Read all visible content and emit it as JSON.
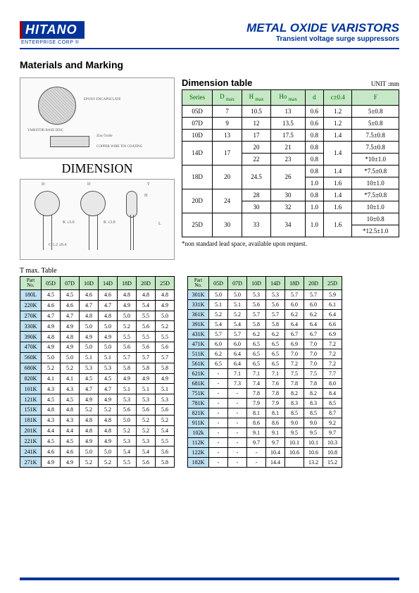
{
  "logo": {
    "main": "HITANO",
    "sub": "ENTERPRISE CORP ®"
  },
  "title": {
    "main": "METAL OXIDE VARISTORS",
    "sub": "Transient voltage surge suppressors"
  },
  "section_heading": "Materials and Marking",
  "dimension_label": "DIMENSION",
  "diagram_labels": {
    "l1": "EPOXY ENCAPSULATE",
    "l2": "VARISTOR BASE DISC",
    "l3": "Zinc Oxide",
    "l4": "COPPER WIRE TIN COATING",
    "l5": "Ag PASTE"
  },
  "dim_table": {
    "title": "Dimension table",
    "unit": "UNIT :mm",
    "headers": [
      "Series",
      "D max",
      "H max",
      "Ho max",
      "d",
      "c±0.4",
      "F"
    ],
    "rows": [
      {
        "cells": [
          "05D",
          "7",
          "10.5",
          "13",
          "0.6",
          "1.2",
          "5±0.8"
        ]
      },
      {
        "cells": [
          "07D",
          "9",
          "12",
          "13.5",
          "0.6",
          "1.2",
          "5±0.8"
        ]
      },
      {
        "cells": [
          "10D",
          "13",
          "17",
          "17.5",
          "0.8",
          "1.4",
          "7.5±0.8"
        ]
      },
      {
        "cells": [
          "14D",
          "17",
          "20",
          "21",
          "0.8",
          "1.4",
          "7.5±0.8"
        ],
        "merge": "a"
      },
      {
        "cells": [
          "",
          "",
          "22",
          "23",
          "0.8",
          "",
          "*10±1.0"
        ],
        "merge": "a"
      },
      {
        "cells": [
          "18D",
          "20",
          "24.5",
          "26",
          "0.8",
          "1.4",
          "*7.5±0.8"
        ],
        "merge": "b"
      },
      {
        "cells": [
          "",
          "",
          "",
          "",
          "1.0",
          "1.6",
          "10±1.0"
        ],
        "merge": "b"
      },
      {
        "cells": [
          "20D",
          "24",
          "28",
          "30",
          "0.8",
          "1.4",
          "*7.5±0.8"
        ],
        "merge": "c"
      },
      {
        "cells": [
          "",
          "",
          "30",
          "32",
          "1.0",
          "1.6",
          "10±1.0"
        ],
        "merge": "c"
      },
      {
        "cells": [
          "25D",
          "30",
          "33",
          "34",
          "1.0",
          "1.6",
          "10±0.8"
        ],
        "merge": "d"
      },
      {
        "cells": [
          "",
          "",
          "",
          "",
          "",
          "",
          "*12.5±1.0"
        ],
        "merge": "d"
      }
    ],
    "footnote": "*non standard lead space, available upon request."
  },
  "tmax": {
    "title": "T max. Table",
    "headers": [
      "Part No.",
      "05D",
      "07D",
      "10D",
      "14D",
      "18D",
      "20D",
      "25D"
    ],
    "left": [
      [
        "180L",
        "4.5",
        "4.5",
        "4.6",
        "4.6",
        "4.8",
        "4.8",
        "4.8"
      ],
      [
        "220K",
        "4.6",
        "4.6",
        "4.7",
        "4.7",
        "4.9",
        "5.4",
        "4.9"
      ],
      [
        "270K",
        "4.7",
        "4.7",
        "4.8",
        "4.8",
        "5.0",
        "5.5",
        "5.0"
      ],
      [
        "330K",
        "4.9",
        "4.9",
        "5.0",
        "5.0",
        "5.2",
        "5.6",
        "5.2"
      ],
      [
        "390K",
        "4.8",
        "4.8",
        "4.9",
        "4.9",
        "5.5",
        "5.5",
        "5.5"
      ],
      [
        "470K",
        "4.9",
        "4.9",
        "5.0",
        "5.0",
        "5.6",
        "5.6",
        "5.6"
      ],
      [
        "560K",
        "5.0",
        "5.0",
        "5.1",
        "5.1",
        "5.7",
        "5.7",
        "5.7"
      ],
      [
        "680K",
        "5.2",
        "5.2",
        "5.3",
        "5.3",
        "5.8",
        "5.8",
        "5.8"
      ],
      [
        "820K",
        "4.1",
        "4.1",
        "4.5",
        "4.5",
        "4.9",
        "4.9",
        "4.9"
      ],
      [
        "101K",
        "4.3",
        "4.3",
        "4.7",
        "4.7",
        "5.1",
        "5.1",
        "5.1"
      ],
      [
        "121K",
        "4.5",
        "4.5",
        "4.9",
        "4.9",
        "5.3",
        "5.3",
        "5.3"
      ],
      [
        "151K",
        "4.8",
        "4.8",
        "5.2",
        "5.2",
        "5.6",
        "5.6",
        "5.6"
      ],
      [
        "181K",
        "4.3",
        "4.3",
        "4.8",
        "4.8",
        "5.0",
        "5.2",
        "5.2"
      ],
      [
        "201K",
        "4.4",
        "4.4",
        "4.8",
        "4.8",
        "5.2",
        "5.2",
        "5.4"
      ],
      [
        "221K",
        "4.5",
        "4.5",
        "4.9",
        "4.9",
        "5.3",
        "5.3",
        "5.5"
      ],
      [
        "241K",
        "4.6",
        "4.6",
        "5.0",
        "5.0",
        "5.4",
        "5.4",
        "5.6"
      ],
      [
        "271K",
        "4.9",
        "4.9",
        "5.2",
        "5.2",
        "5.5",
        "5.6",
        "5.8"
      ]
    ],
    "right": [
      [
        "301K",
        "5.0",
        "5.0",
        "5.3",
        "5.3",
        "5.7",
        "5.7",
        "5.9"
      ],
      [
        "331K",
        "5.1",
        "5.1",
        "5.6",
        "5.6",
        "6.0",
        "6.0",
        "6.1"
      ],
      [
        "361K",
        "5.2",
        "5.2",
        "5.7",
        "5.7",
        "6.2",
        "6.2",
        "6.4"
      ],
      [
        "391K",
        "5.4",
        "5.4",
        "5.8",
        "5.8",
        "6.4",
        "6.4",
        "6.6"
      ],
      [
        "431K",
        "5.7",
        "5.7",
        "6.2",
        "6.2",
        "6.7",
        "6.7",
        "6.9"
      ],
      [
        "471K",
        "6.0",
        "6.0",
        "6.5",
        "6.5",
        "6.9",
        "7.0",
        "7.2"
      ],
      [
        "511K",
        "6.2",
        "6.4",
        "6.5",
        "6.5",
        "7.0",
        "7.0",
        "7.2"
      ],
      [
        "561K",
        "6.5",
        "6.4",
        "6.5",
        "6.5",
        "7.2",
        "7.0",
        "7.2"
      ],
      [
        "621K",
        "-",
        "7.1",
        "7.1",
        "7.1",
        "7.5",
        "7.5",
        "7.7"
      ],
      [
        "681K",
        "-",
        "7.3",
        "7.4",
        "7.6",
        "7.8",
        "7.8",
        "8.0"
      ],
      [
        "751K",
        "-",
        "-",
        "7.8",
        "7.8",
        "8.2",
        "8.2",
        "8.4"
      ],
      [
        "781K",
        "-",
        "-",
        "7.9",
        "7.9",
        "8.3",
        "8.3",
        "8.5"
      ],
      [
        "821K",
        "-",
        "-",
        "8.1",
        "8.1",
        "8.5",
        "8.5",
        "8.7"
      ],
      [
        "911K",
        "-",
        "-",
        "8.6",
        "8.6",
        "9.0",
        "9.0",
        "9.2"
      ],
      [
        "102k",
        "-",
        "-",
        "9.1",
        "9.1",
        "9.5",
        "9.5",
        "9.7"
      ],
      [
        "112K",
        "-",
        "-",
        "9.7",
        "9.7",
        "10.1",
        "10.1",
        "10.3"
      ],
      [
        "122K",
        "-",
        "-",
        "-",
        "10.4",
        "10.6",
        "10.6",
        "10.8"
      ],
      [
        "182K",
        "-",
        "-",
        "-",
        "14.4",
        "",
        "13.2",
        "15.2"
      ]
    ]
  }
}
